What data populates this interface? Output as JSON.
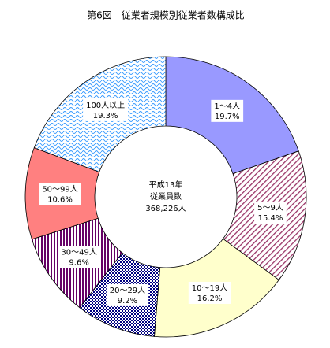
{
  "chart_data": {
    "type": "donut",
    "title": "第6図　従業者規模別従業者数構成比",
    "center_text": [
      "平成13年",
      "従業員数",
      "368,226人"
    ],
    "categories": [
      "1～4人",
      "5～9人",
      "10～19人",
      "20～29人",
      "30～49人",
      "50～99人",
      "100人以上"
    ],
    "values": [
      19.7,
      15.4,
      16.2,
      9.2,
      9.6,
      10.6,
      19.3
    ],
    "value_labels": [
      "19.7%",
      "15.4%",
      "16.2%",
      "9.2%",
      "9.6%",
      "10.6%",
      "19.3%"
    ],
    "colors": [
      "#9999ff",
      "#993366",
      "#ffffcc",
      "#000080",
      "#660066",
      "#ff8080",
      "#3399ff"
    ],
    "patterns": [
      "solid",
      "diagonal",
      "solid",
      "checker",
      "vertical",
      "solid",
      "wave"
    ]
  }
}
